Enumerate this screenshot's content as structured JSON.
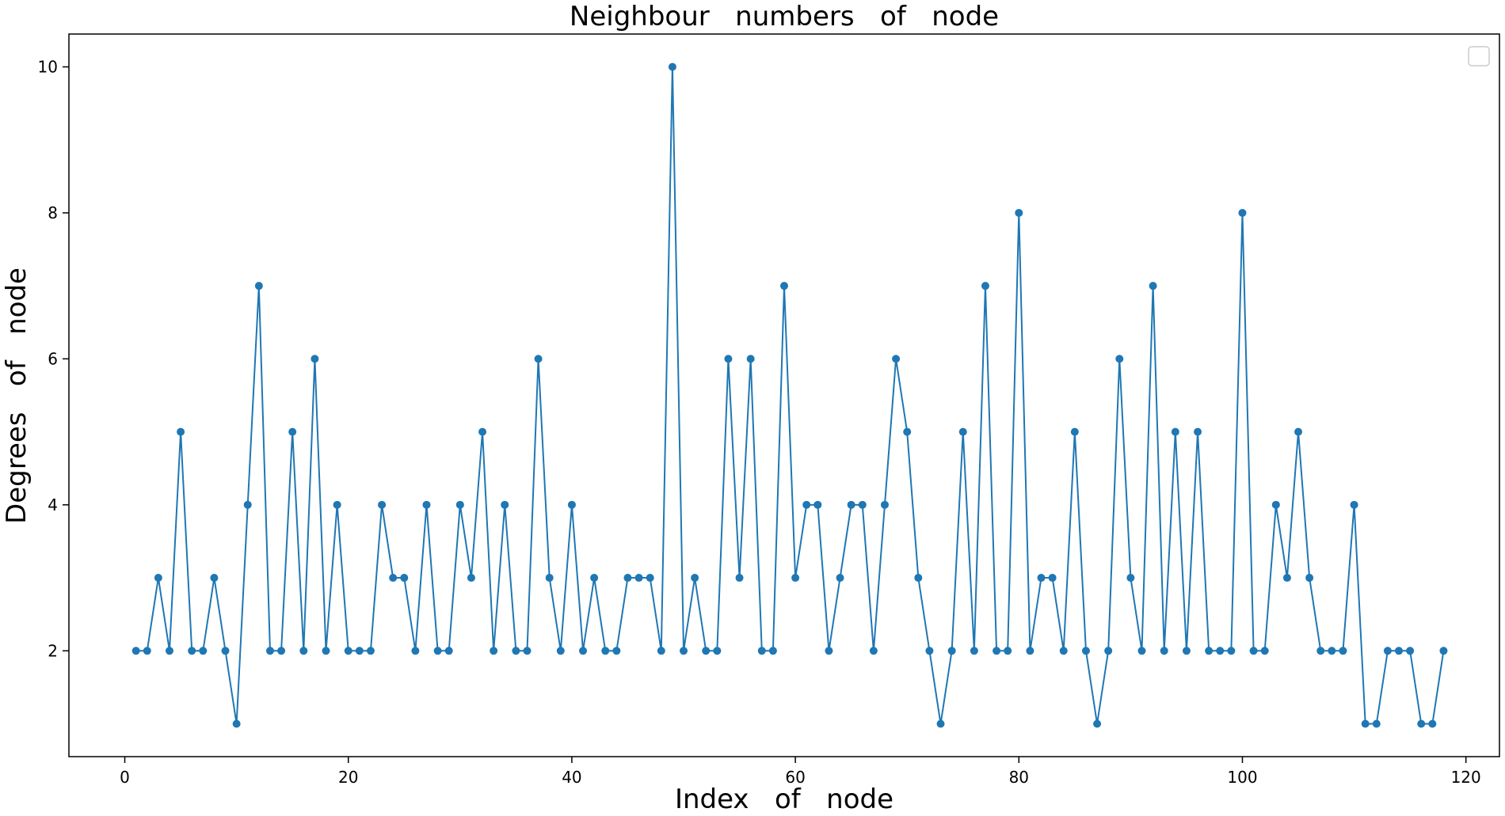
{
  "chart_data": {
    "type": "line",
    "title": "Neighbour   numbers   of   node",
    "xlabel": "Index   of   node",
    "ylabel": "Degrees   of   node",
    "xlim": [
      -5,
      123
    ],
    "ylim": [
      0.55,
      10.45
    ],
    "xticks": [
      0,
      20,
      40,
      60,
      80,
      100,
      120
    ],
    "yticks": [
      2,
      4,
      6,
      8,
      10
    ],
    "grid": false,
    "legend": "top-right",
    "color": "#1f77b4",
    "series": [
      {
        "x": [
          1,
          2,
          3,
          4,
          5,
          6,
          7,
          8,
          9,
          10,
          11,
          12,
          13,
          14,
          15,
          16,
          17,
          18,
          19,
          20,
          21,
          22,
          23,
          24,
          25,
          26,
          27,
          28,
          29,
          30,
          31,
          32,
          33,
          34,
          35,
          36,
          37,
          38,
          39,
          40,
          41,
          42,
          43,
          44,
          45,
          46,
          47,
          48,
          49,
          50,
          51,
          52,
          53,
          54,
          55,
          56,
          57,
          58,
          59,
          60,
          61,
          62,
          63,
          64,
          65,
          66,
          67,
          68,
          69,
          70,
          71,
          72,
          73,
          74,
          75,
          76,
          77,
          78,
          79,
          80,
          81,
          82,
          83,
          84,
          85,
          86,
          87,
          88,
          89,
          90,
          91,
          92,
          93,
          94,
          95,
          96,
          97,
          98,
          99,
          100,
          101,
          102,
          103,
          104,
          105,
          106,
          107,
          108,
          109,
          110,
          111,
          112,
          113,
          114,
          115,
          116,
          117,
          118
        ],
        "values": [
          2,
          2,
          3,
          2,
          5,
          2,
          2,
          3,
          2,
          1,
          4,
          7,
          2,
          2,
          5,
          2,
          6,
          2,
          4,
          2,
          2,
          2,
          4,
          3,
          3,
          2,
          4,
          2,
          2,
          4,
          3,
          5,
          2,
          4,
          2,
          2,
          6,
          3,
          2,
          4,
          2,
          3,
          2,
          2,
          3,
          3,
          3,
          2,
          10,
          2,
          3,
          2,
          2,
          6,
          3,
          6,
          2,
          2,
          7,
          3,
          4,
          4,
          2,
          3,
          4,
          4,
          2,
          4,
          6,
          5,
          3,
          2,
          1,
          2,
          5,
          2,
          7,
          2,
          2,
          8,
          2,
          3,
          3,
          2,
          5,
          2,
          1,
          2,
          6,
          3,
          2,
          7,
          2,
          5,
          2,
          5,
          2,
          2,
          2,
          8,
          2,
          2,
          4,
          3,
          5,
          3,
          2,
          2,
          2,
          4,
          1,
          1,
          2,
          2,
          2,
          1,
          1,
          2
        ]
      }
    ]
  }
}
